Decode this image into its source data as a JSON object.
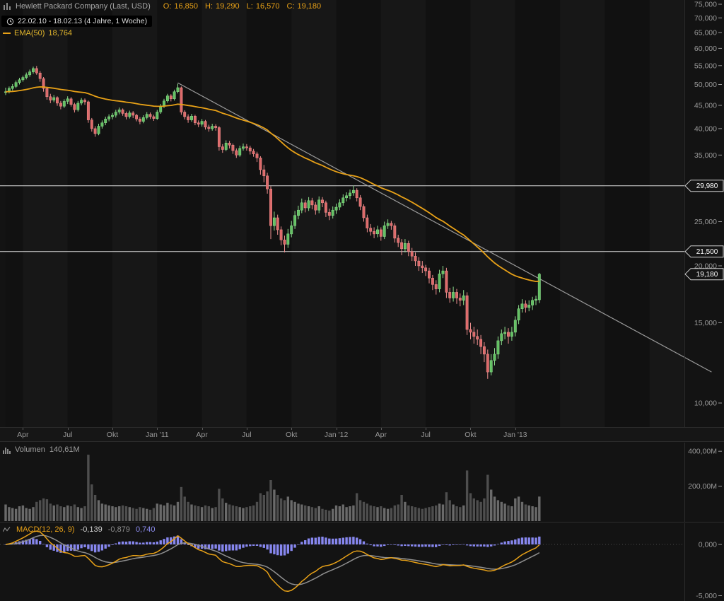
{
  "header": {
    "symbol_title": "Hewlett Packard Company (Last, USD)",
    "ohlc_labels": {
      "o": "O:",
      "h": "H:",
      "l": "L:",
      "c": "C:"
    },
    "ohlc": {
      "o": "16,850",
      "h": "19,290",
      "l": "16,570",
      "c": "19,180"
    },
    "date_range": "22.02.10 - 18.02.13 (4 Jahre, 1 Woche)",
    "ema": {
      "label": "EMA(50)",
      "value": "18,764"
    }
  },
  "volume_panel": {
    "label": "Volumen",
    "value": "140,61M",
    "axis": [
      {
        "value": 400,
        "text": "400,00M"
      },
      {
        "value": 200,
        "text": "200,00M"
      }
    ]
  },
  "macd_panel": {
    "label": "MACD(12, 26, 9)",
    "macd_value": "-0,139",
    "signal_value": "-0,879",
    "hist_value": "0,740",
    "axis": [
      {
        "value": 0,
        "text": "0,000"
      },
      {
        "value": -5,
        "text": "-5,000"
      }
    ]
  },
  "price_axis": {
    "labels": [
      {
        "price": 75,
        "text": "75,000"
      },
      {
        "price": 70,
        "text": "70,000"
      },
      {
        "price": 65,
        "text": "65,000"
      },
      {
        "price": 60,
        "text": "60,000"
      },
      {
        "price": 55,
        "text": "55,000"
      },
      {
        "price": 50,
        "text": "50,000"
      },
      {
        "price": 45,
        "text": "45,000"
      },
      {
        "price": 40,
        "text": "40,000"
      },
      {
        "price": 35,
        "text": "35,000"
      },
      {
        "price": 25,
        "text": "25,000"
      },
      {
        "price": 20,
        "text": "20,000"
      },
      {
        "price": 15,
        "text": "15,000"
      },
      {
        "price": 10,
        "text": "10,000"
      }
    ]
  },
  "x_axis": {
    "labels": [
      {
        "week": 6,
        "text": "Apr"
      },
      {
        "week": 19,
        "text": "Jul"
      },
      {
        "week": 32,
        "text": "Okt"
      },
      {
        "week": 45,
        "text": "Jan '11"
      },
      {
        "week": 58,
        "text": "Apr"
      },
      {
        "week": 71,
        "text": "Jul"
      },
      {
        "week": 84,
        "text": "Okt"
      },
      {
        "week": 97,
        "text": "Jan '12"
      },
      {
        "week": 110,
        "text": "Apr"
      },
      {
        "week": 123,
        "text": "Jul"
      },
      {
        "week": 136,
        "text": "Okt"
      },
      {
        "week": 149,
        "text": "Jan '13"
      }
    ]
  },
  "chart_data": {
    "type": "candlestick",
    "title": "Hewlett Packard Company (Last, USD)",
    "frequency": "1 Woche",
    "range_label": "22.02.10 - 18.02.13 (4 Jahre, 1 Woche)",
    "scale": "log",
    "ylim": [
      10,
      76
    ],
    "quarter_weeks": [
      1,
      6,
      19,
      32,
      45,
      58,
      71,
      84,
      97,
      110,
      123,
      136,
      149,
      162,
      175,
      188,
      198
    ],
    "overlays": [
      {
        "name": "EMA",
        "period": 50,
        "display_value": "18,764"
      }
    ],
    "indicators": [
      {
        "name": "MACD",
        "params": [
          12,
          26,
          9
        ],
        "macd": -0.139,
        "signal": -0.879,
        "hist": 0.74
      }
    ],
    "annotations": {
      "hlines": [
        {
          "price": 29.98,
          "label": "29,980"
        },
        {
          "price": 21.5,
          "label": "21,500"
        }
      ],
      "last_price": {
        "price": 19.18,
        "label": "19,180"
      },
      "trendline": {
        "from": {
          "week": 51,
          "price": 50.4
        },
        "to": {
          "week": 206,
          "price": 11.7
        }
      }
    },
    "candles_ohlc": [
      [
        48.0,
        49.2,
        47.4,
        48.2
      ],
      [
        48.2,
        49.5,
        47.8,
        49.0
      ],
      [
        49.0,
        50.1,
        48.5,
        49.5
      ],
      [
        49.5,
        51.0,
        49.1,
        50.5
      ],
      [
        50.5,
        51.7,
        50.0,
        51.2
      ],
      [
        51.2,
        52.3,
        50.7,
        51.8
      ],
      [
        51.8,
        53.1,
        51.3,
        52.5
      ],
      [
        52.5,
        53.9,
        52.0,
        53.3
      ],
      [
        53.3,
        54.7,
        52.8,
        54.2
      ],
      [
        54.2,
        54.9,
        52.5,
        53.0
      ],
      [
        53.0,
        53.5,
        50.7,
        51.5
      ],
      [
        51.5,
        51.9,
        48.2,
        49.0
      ],
      [
        49.0,
        49.4,
        46.3,
        47.0
      ],
      [
        47.0,
        47.7,
        45.5,
        46.2
      ],
      [
        46.2,
        47.4,
        45.7,
        46.8
      ],
      [
        46.8,
        47.1,
        44.9,
        45.5
      ],
      [
        45.5,
        46.0,
        44.1,
        44.8
      ],
      [
        44.8,
        46.4,
        44.4,
        45.9
      ],
      [
        45.9,
        47.1,
        45.3,
        46.5
      ],
      [
        46.5,
        46.9,
        44.7,
        45.2
      ],
      [
        45.2,
        45.6,
        43.4,
        44.0
      ],
      [
        44.0,
        46.0,
        43.6,
        45.5
      ],
      [
        45.5,
        46.7,
        45.0,
        46.2
      ],
      [
        46.2,
        46.6,
        45.1,
        45.8
      ],
      [
        45.8,
        46.1,
        41.2,
        41.8
      ],
      [
        41.8,
        42.2,
        39.4,
        40.0
      ],
      [
        40.0,
        40.5,
        38.4,
        39.0
      ],
      [
        39.0,
        41.0,
        38.7,
        40.5
      ],
      [
        40.5,
        41.7,
        40.0,
        41.2
      ],
      [
        41.2,
        42.5,
        40.7,
        42.0
      ],
      [
        42.0,
        43.0,
        41.5,
        42.5
      ],
      [
        42.5,
        43.3,
        41.9,
        42.8
      ],
      [
        42.8,
        44.0,
        42.3,
        43.5
      ],
      [
        43.5,
        44.5,
        43.0,
        44.0
      ],
      [
        44.0,
        44.3,
        42.7,
        43.2
      ],
      [
        43.2,
        43.6,
        41.9,
        42.5
      ],
      [
        42.5,
        43.8,
        42.1,
        43.3
      ],
      [
        43.3,
        43.7,
        42.2,
        42.8
      ],
      [
        42.8,
        43.1,
        41.5,
        42.0
      ],
      [
        42.0,
        42.4,
        40.9,
        41.5
      ],
      [
        41.5,
        42.8,
        41.1,
        42.3
      ],
      [
        42.3,
        43.5,
        41.9,
        43.0
      ],
      [
        43.0,
        43.4,
        42.0,
        42.5
      ],
      [
        42.5,
        42.9,
        41.6,
        42.1
      ],
      [
        42.1,
        44.0,
        41.8,
        43.5
      ],
      [
        43.5,
        45.3,
        43.1,
        44.8
      ],
      [
        44.8,
        46.5,
        44.4,
        46.0
      ],
      [
        46.0,
        47.7,
        45.6,
        47.2
      ],
      [
        47.2,
        47.6,
        45.9,
        46.5
      ],
      [
        46.5,
        48.7,
        46.1,
        48.2
      ],
      [
        48.2,
        50.2,
        47.8,
        49.2
      ],
      [
        49.2,
        49.5,
        42.9,
        43.5
      ],
      [
        43.5,
        43.9,
        41.9,
        42.5
      ],
      [
        42.5,
        43.0,
        41.2,
        41.8
      ],
      [
        41.8,
        43.1,
        41.4,
        42.6
      ],
      [
        42.6,
        42.9,
        40.7,
        41.2
      ],
      [
        41.2,
        41.7,
        40.3,
        40.9
      ],
      [
        40.9,
        42.0,
        40.4,
        41.5
      ],
      [
        41.5,
        41.8,
        39.8,
        40.3
      ],
      [
        40.3,
        40.8,
        39.4,
        40.0
      ],
      [
        40.0,
        41.0,
        39.6,
        40.5
      ],
      [
        40.5,
        40.9,
        39.6,
        40.2
      ],
      [
        40.2,
        40.5,
        35.8,
        36.5
      ],
      [
        36.5,
        37.0,
        35.4,
        36.0
      ],
      [
        36.0,
        37.7,
        35.7,
        37.2
      ],
      [
        37.2,
        37.6,
        36.2,
        36.8
      ],
      [
        36.8,
        37.1,
        35.2,
        35.8
      ],
      [
        35.8,
        36.2,
        34.5,
        35.0
      ],
      [
        35.0,
        36.7,
        34.7,
        36.2
      ],
      [
        36.2,
        37.1,
        35.8,
        36.5
      ],
      [
        36.5,
        37.0,
        35.8,
        36.3
      ],
      [
        36.3,
        36.7,
        35.1,
        35.7
      ],
      [
        35.7,
        36.1,
        34.7,
        35.2
      ],
      [
        35.2,
        35.6,
        33.8,
        34.5
      ],
      [
        34.5,
        34.8,
        31.7,
        32.5
      ],
      [
        32.5,
        33.3,
        30.5,
        31.5
      ],
      [
        31.5,
        32.0,
        28.8,
        29.5
      ],
      [
        29.5,
        29.9,
        22.9,
        24.5
      ],
      [
        24.5,
        26.3,
        23.9,
        25.5
      ],
      [
        25.5,
        25.9,
        23.4,
        24.0
      ],
      [
        24.0,
        24.4,
        22.2,
        22.8
      ],
      [
        22.8,
        23.3,
        21.4,
        22.3
      ],
      [
        22.3,
        24.1,
        21.9,
        23.5
      ],
      [
        23.5,
        25.1,
        23.1,
        24.5
      ],
      [
        24.5,
        26.4,
        24.1,
        25.8
      ],
      [
        25.8,
        27.1,
        25.3,
        26.5
      ],
      [
        26.5,
        28.1,
        26.1,
        27.5
      ],
      [
        27.5,
        27.9,
        26.2,
        26.8
      ],
      [
        26.8,
        28.3,
        26.4,
        27.8
      ],
      [
        27.8,
        28.2,
        26.6,
        27.2
      ],
      [
        27.2,
        27.6,
        25.9,
        26.5
      ],
      [
        26.5,
        28.4,
        26.1,
        27.9
      ],
      [
        27.9,
        28.3,
        26.9,
        27.5
      ],
      [
        27.5,
        27.8,
        25.6,
        26.2
      ],
      [
        26.2,
        26.7,
        25.2,
        25.8
      ],
      [
        25.8,
        27.0,
        25.4,
        26.5
      ],
      [
        26.5,
        27.4,
        26.0,
        26.9
      ],
      [
        26.9,
        28.0,
        26.5,
        27.5
      ],
      [
        27.5,
        28.7,
        27.1,
        28.2
      ],
      [
        28.2,
        29.0,
        27.7,
        28.5
      ],
      [
        28.5,
        29.4,
        28.0,
        28.9
      ],
      [
        28.9,
        30.0,
        28.5,
        29.3
      ],
      [
        29.3,
        29.6,
        27.7,
        28.2
      ],
      [
        28.2,
        28.6,
        26.5,
        27.0
      ],
      [
        27.0,
        27.3,
        25.0,
        25.5
      ],
      [
        25.5,
        25.9,
        23.7,
        24.2
      ],
      [
        24.2,
        24.7,
        23.3,
        23.8
      ],
      [
        23.8,
        24.3,
        23.0,
        23.5
      ],
      [
        23.5,
        24.5,
        23.1,
        24.0
      ],
      [
        24.0,
        24.3,
        22.7,
        23.2
      ],
      [
        23.2,
        25.0,
        22.9,
        24.5
      ],
      [
        24.5,
        25.3,
        24.1,
        24.8
      ],
      [
        24.8,
        25.1,
        24.0,
        24.5
      ],
      [
        24.5,
        24.8,
        22.5,
        23.0
      ],
      [
        23.0,
        23.4,
        22.0,
        22.5
      ],
      [
        22.5,
        22.9,
        21.1,
        21.8
      ],
      [
        21.8,
        22.9,
        21.4,
        22.4
      ],
      [
        22.4,
        22.7,
        21.0,
        21.5
      ],
      [
        21.5,
        21.9,
        20.5,
        21.0
      ],
      [
        21.0,
        21.4,
        20.0,
        20.5
      ],
      [
        20.5,
        20.9,
        19.5,
        20.0
      ],
      [
        20.0,
        20.5,
        19.3,
        19.8
      ],
      [
        19.8,
        20.1,
        19.0,
        19.5
      ],
      [
        19.5,
        19.8,
        18.3,
        18.8
      ],
      [
        18.8,
        19.1,
        17.7,
        18.2
      ],
      [
        18.2,
        18.6,
        17.3,
        17.8
      ],
      [
        17.8,
        19.6,
        17.5,
        19.2
      ],
      [
        19.2,
        20.0,
        18.8,
        19.5
      ],
      [
        19.5,
        19.8,
        17.0,
        17.5
      ],
      [
        17.5,
        17.9,
        16.6,
        17.0
      ],
      [
        17.0,
        18.0,
        16.7,
        17.5
      ],
      [
        17.5,
        17.8,
        16.5,
        17.0
      ],
      [
        17.0,
        17.4,
        16.3,
        16.8
      ],
      [
        16.8,
        17.7,
        16.4,
        17.2
      ],
      [
        17.2,
        17.5,
        14.1,
        14.5
      ],
      [
        14.5,
        15.0,
        13.8,
        14.3
      ],
      [
        14.3,
        14.7,
        13.5,
        14.0
      ],
      [
        14.0,
        14.5,
        13.4,
        13.8
      ],
      [
        13.8,
        14.1,
        12.8,
        13.3
      ],
      [
        13.3,
        13.6,
        12.3,
        12.8
      ],
      [
        12.8,
        13.1,
        11.3,
        11.7
      ],
      [
        11.7,
        12.8,
        11.5,
        12.4
      ],
      [
        12.4,
        13.2,
        12.1,
        12.8
      ],
      [
        12.8,
        14.0,
        12.5,
        13.7
      ],
      [
        13.7,
        14.5,
        13.4,
        14.2
      ],
      [
        14.2,
        14.7,
        13.8,
        14.3
      ],
      [
        14.3,
        14.6,
        13.5,
        14.0
      ],
      [
        14.0,
        14.7,
        13.7,
        14.3
      ],
      [
        14.3,
        15.5,
        14.0,
        15.2
      ],
      [
        15.2,
        16.4,
        14.9,
        16.1
      ],
      [
        16.1,
        16.9,
        15.8,
        16.5
      ],
      [
        16.5,
        16.8,
        15.8,
        16.2
      ],
      [
        16.2,
        16.8,
        15.9,
        16.4
      ],
      [
        16.4,
        17.1,
        16.0,
        16.8
      ],
      [
        16.8,
        17.2,
        16.4,
        16.9
      ],
      [
        16.85,
        19.29,
        16.57,
        19.18
      ]
    ],
    "volume_m": [
      95,
      80,
      75,
      70,
      85,
      90,
      75,
      70,
      80,
      110,
      120,
      130,
      125,
      100,
      90,
      95,
      85,
      80,
      90,
      85,
      95,
      80,
      75,
      85,
      380,
      210,
      150,
      120,
      100,
      95,
      90,
      85,
      80,
      85,
      90,
      85,
      80,
      75,
      70,
      80,
      75,
      70,
      65,
      75,
      100,
      95,
      90,
      105,
      95,
      90,
      110,
      195,
      140,
      110,
      95,
      90,
      85,
      80,
      90,
      85,
      75,
      80,
      185,
      130,
      105,
      95,
      90,
      85,
      80,
      75,
      80,
      85,
      90,
      110,
      160,
      150,
      170,
      235,
      180,
      150,
      130,
      120,
      140,
      120,
      110,
      100,
      95,
      90,
      85,
      80,
      75,
      85,
      70,
      65,
      60,
      70,
      90,
      85,
      95,
      80,
      85,
      90,
      160,
      120,
      110,
      100,
      90,
      85,
      80,
      85,
      75,
      70,
      75,
      90,
      95,
      150,
      110,
      90,
      85,
      80,
      75,
      70,
      75,
      80,
      85,
      90,
      100,
      95,
      165,
      120,
      95,
      85,
      80,
      90,
      290,
      160,
      130,
      120,
      110,
      130,
      265,
      180,
      140,
      120,
      110,
      100,
      90,
      85,
      130,
      140,
      110,
      95,
      90,
      85,
      80,
      140.61
    ]
  },
  "colors": {
    "bg": "#131313",
    "band_dark": "#111111",
    "band_light": "#171717",
    "candle_up": "#8ee08e",
    "candle_up_fill": "#63c063",
    "candle_down": "#f09090",
    "candle_down_fill": "#dd6a6a",
    "ema": "#e8a117",
    "trend": "#9a9a9a",
    "hline": "#dcdcdc",
    "axis_text": "#999999",
    "volume_bar_up": "#6a6a6a",
    "volume_bar_down": "#4e4e4e",
    "macd_hist": "#8787ef",
    "macd_line": "#e8a117",
    "signal_line": "#8f8f8f",
    "tag_bg": "#151515",
    "tag_border": "#d0d0d0"
  }
}
